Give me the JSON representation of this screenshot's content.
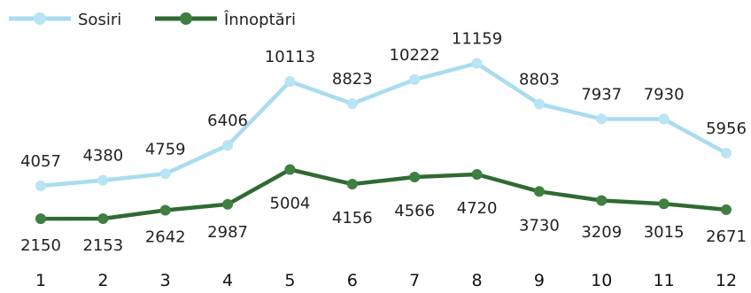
{
  "chart_data": {
    "type": "line",
    "categories": [
      "1",
      "2",
      "3",
      "4",
      "5",
      "6",
      "7",
      "8",
      "9",
      "10",
      "11",
      "12"
    ],
    "series": [
      {
        "name": "Sosiri",
        "color": "#a9dcef",
        "marker_color": "#b9e4f4",
        "values": [
          4057,
          4380,
          4759,
          6406,
          10113,
          8823,
          10222,
          11159,
          8803,
          7937,
          7930,
          5956
        ],
        "labels": [
          "4057",
          "4380",
          "4759",
          "6406",
          "10113",
          "8823",
          "10222",
          "11159",
          "8803",
          "7937",
          "7930",
          "5956"
        ]
      },
      {
        "name": "Înnoptări",
        "color": "#2f6a33",
        "marker_color": "#3f7f41",
        "values": [
          2150,
          2153,
          2642,
          2987,
          5004,
          4156,
          4566,
          4720,
          3730,
          3209,
          3015,
          2671
        ],
        "labels": [
          "2150",
          "2153",
          "2642",
          "2987",
          "5004",
          "4156",
          "4566",
          "4720",
          "3730",
          "3209",
          "3015",
          "2671"
        ]
      }
    ],
    "title": "",
    "xlabel": "",
    "ylabel": "",
    "legend_position": "top-left",
    "grid": false
  }
}
